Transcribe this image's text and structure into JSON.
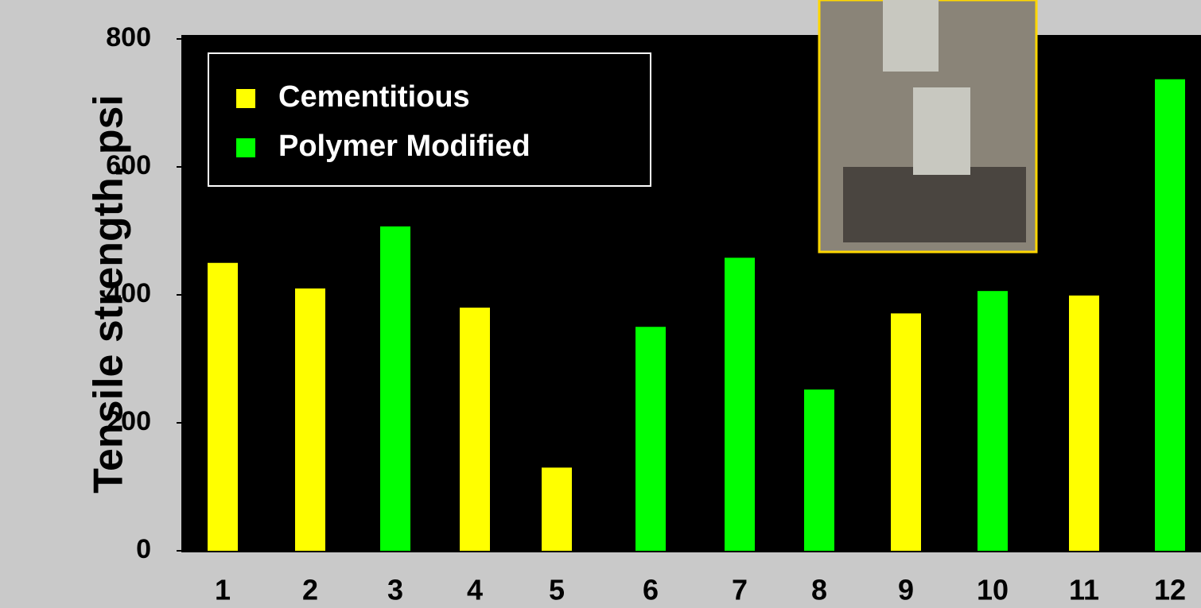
{
  "chart_data": {
    "type": "bar",
    "ylabel": "Tensile strength, psi",
    "categories": [
      "1",
      "2",
      "3",
      "4",
      "5",
      "6",
      "7",
      "8",
      "9",
      "10",
      "11",
      "12"
    ],
    "series": [
      {
        "name": "Cementitious",
        "color": "#ffff00",
        "values": [
          450,
          410,
          null,
          380,
          130,
          null,
          null,
          null,
          371,
          null,
          399,
          null
        ]
      },
      {
        "name": "Polymer Modified",
        "color": "#00ff00",
        "values": [
          null,
          null,
          507,
          null,
          null,
          350,
          458,
          252,
          null,
          406,
          null,
          737
        ]
      }
    ],
    "ylim": [
      0,
      800
    ],
    "yticks": [
      0,
      200,
      400,
      600,
      800
    ],
    "legend": "upper left"
  }
}
